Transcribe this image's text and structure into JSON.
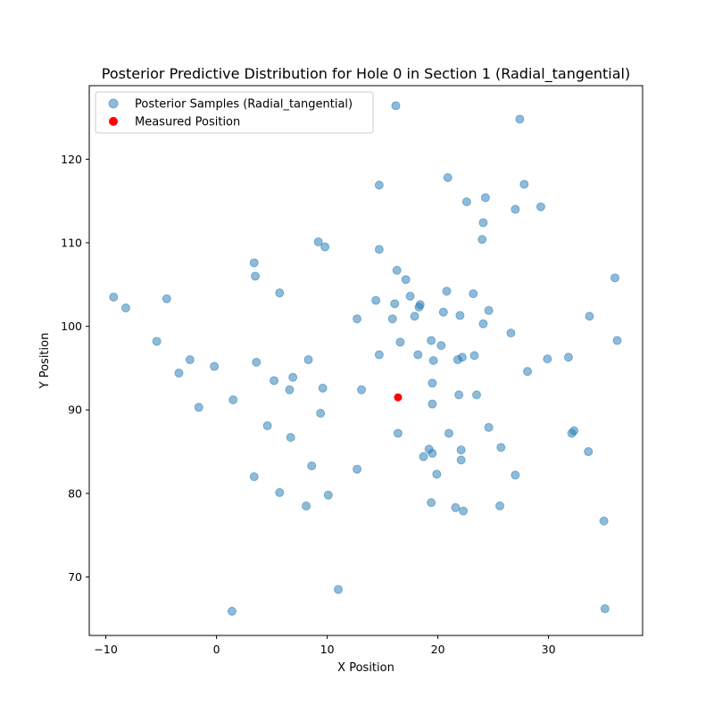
{
  "chart_data": {
    "type": "scatter",
    "title": "Posterior Predictive Distribution for Hole 0 in Section 1 (Radial_tangential)",
    "xlabel": "X Position",
    "ylabel": "Y Position",
    "xlim": [
      -11.5,
      38.5
    ],
    "ylim": [
      63,
      128.8
    ],
    "xticks": [
      -10,
      0,
      10,
      20,
      30
    ],
    "yticks": [
      70,
      80,
      90,
      100,
      110,
      120
    ],
    "grid": false,
    "legend_position": "top-left",
    "series": [
      {
        "name": "Posterior Samples (Radial_tangential)",
        "color": "#1f77b4",
        "points": [
          [
            16.2,
            126.4
          ],
          [
            27.4,
            124.8
          ],
          [
            20.9,
            117.8
          ],
          [
            27.8,
            117.0
          ],
          [
            14.7,
            116.9
          ],
          [
            24.3,
            115.4
          ],
          [
            22.6,
            114.9
          ],
          [
            29.3,
            114.3
          ],
          [
            27.0,
            114.0
          ],
          [
            24.1,
            112.4
          ],
          [
            24.0,
            110.4
          ],
          [
            9.2,
            110.1
          ],
          [
            9.8,
            109.5
          ],
          [
            14.7,
            109.2
          ],
          [
            3.4,
            107.6
          ],
          [
            16.3,
            106.7
          ],
          [
            17.1,
            105.6
          ],
          [
            3.5,
            106.0
          ],
          [
            36.0,
            105.8
          ],
          [
            5.7,
            104.0
          ],
          [
            20.8,
            104.2
          ],
          [
            23.2,
            103.9
          ],
          [
            17.5,
            103.6
          ],
          [
            -9.3,
            103.5
          ],
          [
            -4.5,
            103.3
          ],
          [
            14.4,
            103.1
          ],
          [
            16.1,
            102.7
          ],
          [
            18.4,
            102.6
          ],
          [
            18.3,
            102.3
          ],
          [
            -8.2,
            102.2
          ],
          [
            24.6,
            101.9
          ],
          [
            20.5,
            101.7
          ],
          [
            22.0,
            101.3
          ],
          [
            17.9,
            101.2
          ],
          [
            33.7,
            101.2
          ],
          [
            15.9,
            100.9
          ],
          [
            12.7,
            100.9
          ],
          [
            24.1,
            100.3
          ],
          [
            26.6,
            99.2
          ],
          [
            19.4,
            98.3
          ],
          [
            -5.4,
            98.2
          ],
          [
            16.6,
            98.1
          ],
          [
            36.2,
            98.3
          ],
          [
            20.3,
            97.7
          ],
          [
            14.7,
            96.6
          ],
          [
            18.2,
            96.6
          ],
          [
            23.3,
            96.5
          ],
          [
            22.2,
            96.3
          ],
          [
            31.8,
            96.3
          ],
          [
            29.9,
            96.1
          ],
          [
            -2.4,
            96.0
          ],
          [
            21.8,
            96.0
          ],
          [
            8.3,
            96.0
          ],
          [
            19.6,
            95.9
          ],
          [
            3.6,
            95.7
          ],
          [
            -0.2,
            95.2
          ],
          [
            28.1,
            94.6
          ],
          [
            -3.4,
            94.4
          ],
          [
            6.9,
            93.9
          ],
          [
            5.2,
            93.5
          ],
          [
            19.5,
            93.2
          ],
          [
            9.6,
            92.6
          ],
          [
            6.6,
            92.4
          ],
          [
            13.1,
            92.4
          ],
          [
            23.5,
            91.8
          ],
          [
            21.9,
            91.8
          ],
          [
            1.5,
            91.2
          ],
          [
            19.5,
            90.7
          ],
          [
            -1.6,
            90.3
          ],
          [
            9.4,
            89.6
          ],
          [
            4.6,
            88.1
          ],
          [
            24.6,
            87.9
          ],
          [
            32.3,
            87.5
          ],
          [
            32.1,
            87.2
          ],
          [
            16.4,
            87.2
          ],
          [
            21.0,
            87.2
          ],
          [
            6.7,
            86.7
          ],
          [
            25.7,
            85.5
          ],
          [
            19.2,
            85.3
          ],
          [
            22.1,
            85.2
          ],
          [
            33.6,
            85.0
          ],
          [
            19.5,
            84.8
          ],
          [
            18.7,
            84.4
          ],
          [
            22.1,
            84.0
          ],
          [
            8.6,
            83.3
          ],
          [
            12.7,
            82.9
          ],
          [
            19.9,
            82.3
          ],
          [
            27.0,
            82.2
          ],
          [
            3.4,
            82.0
          ],
          [
            5.7,
            80.1
          ],
          [
            10.1,
            79.8
          ],
          [
            19.4,
            78.9
          ],
          [
            8.1,
            78.5
          ],
          [
            25.6,
            78.5
          ],
          [
            21.6,
            78.3
          ],
          [
            22.3,
            77.9
          ],
          [
            35.0,
            76.7
          ],
          [
            11.0,
            68.5
          ],
          [
            1.4,
            65.9
          ],
          [
            35.1,
            66.2
          ]
        ]
      },
      {
        "name": "Measured Position",
        "color": "#ff0000",
        "points": [
          [
            16.4,
            91.5
          ]
        ]
      }
    ]
  }
}
